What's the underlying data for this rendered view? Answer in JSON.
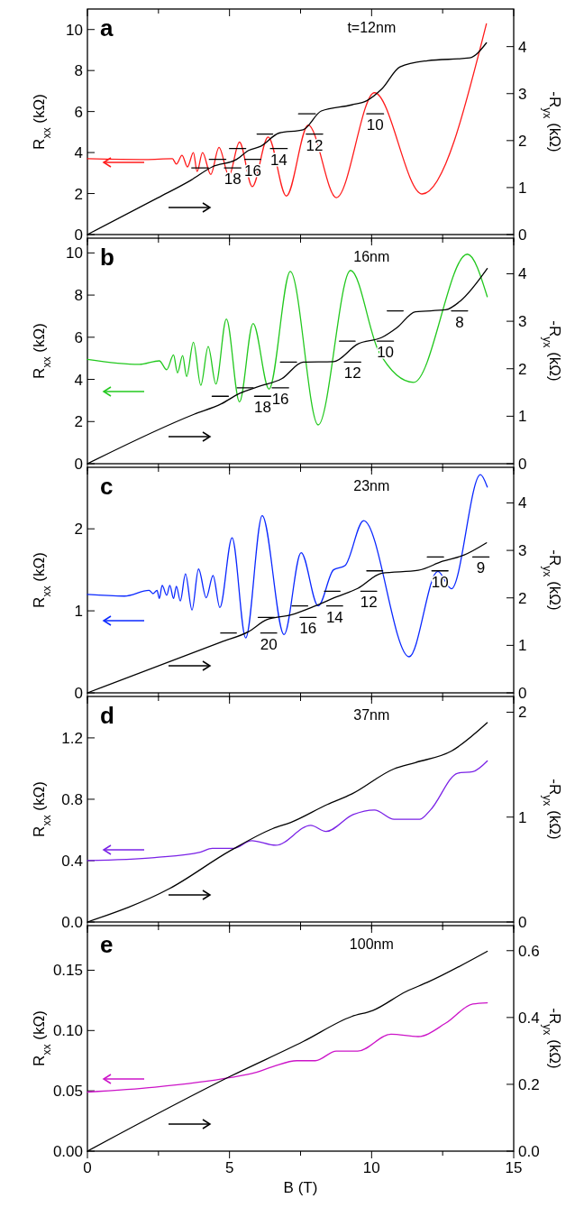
{
  "chart_data": [
    {
      "type": "line",
      "ylabel": "R$_{xx}$ (kΩ)",
      "y2label": "-R$_{yx}$ (kΩ)",
      "tick_labels": "y",
      "xlim": [
        0,
        15
      ],
      "xticks": [
        0,
        {
          "value": 2.5,
          "label": null
        },
        5,
        {
          "value": 7.5,
          "label": null
        },
        10,
        {
          "value": 12.5,
          "label": null
        },
        15
      ],
      "ylim": [
        0,
        11
      ],
      "yticks": [
        0,
        2,
        4,
        6,
        8,
        10
      ],
      "y2lim": [
        0,
        4.8
      ],
      "y2ticks": [
        0,
        1,
        2,
        3,
        4
      ],
      "annotations": [
        "a",
        "t=12nm",
        "18",
        "16",
        "14",
        "12",
        "10"
      ],
      "series": [
        {
          "color": "#ff1a1a",
          "x": [
            0,
            2.05,
            2.99,
            3.13,
            3.33,
            3.52,
            3.73,
            3.86,
            4.05,
            4.34,
            4.63,
            4.98,
            5.35,
            5.8,
            6.36,
            7.0,
            7.77,
            8.76,
            10.1,
            11.78,
            14.04
          ],
          "values": [
            3.7,
            3.66,
            3.7,
            3.44,
            3.87,
            3.3,
            4.0,
            3.08,
            4.0,
            2.93,
            4.25,
            2.87,
            4.51,
            2.34,
            4.76,
            1.88,
            5.34,
            1.8,
            6.92,
            1.98,
            10.28
          ]
        },
        {
          "color": "#000000",
          "axis": "y2",
          "x": [
            0,
            2.47,
            3.65,
            4.39,
            5.25,
            5.67,
            6.1,
            6.74,
            7.59,
            8.23,
            9.3,
            9.83,
            10.36,
            11.0,
            11.96,
            13.45,
            14.04
          ],
          "values": [
            0,
            0.78,
            1.16,
            1.44,
            1.6,
            1.79,
            1.88,
            2.16,
            2.23,
            2.63,
            2.76,
            2.85,
            3.1,
            3.57,
            3.7,
            3.76,
            4.08
          ]
        },
        {
          "color": "#000000",
          "axis": "y2",
          "x": [
            3.67,
            4.26
          ],
          "values": [
            1.42,
            1.42
          ]
        },
        {
          "color": "#000000",
          "axis": "y2",
          "x": [
            4.29,
            4.87
          ],
          "values": [
            1.6,
            1.6
          ]
        },
        {
          "color": "#000000",
          "axis": "y2",
          "x": [
            4.82,
            5.4
          ],
          "values": [
            1.42,
            1.42
          ]
        },
        {
          "color": "#000000",
          "axis": "y2",
          "x": [
            5.0,
            5.57
          ],
          "values": [
            1.83,
            1.83
          ]
        },
        {
          "color": "#000000",
          "axis": "y2",
          "x": [
            5.54,
            6.1
          ],
          "values": [
            1.6,
            1.6
          ]
        },
        {
          "color": "#000000",
          "axis": "y2",
          "x": [
            5.97,
            6.52
          ],
          "values": [
            2.14,
            2.14
          ]
        },
        {
          "color": "#000000",
          "axis": "y2",
          "x": [
            6.44,
            7.03
          ],
          "values": [
            1.83,
            1.83
          ]
        },
        {
          "color": "#000000",
          "axis": "y2",
          "x": [
            7.43,
            8.02
          ],
          "values": [
            2.57,
            2.57
          ]
        },
        {
          "color": "#000000",
          "axis": "y2",
          "x": [
            7.7,
            8.28
          ],
          "values": [
            2.14,
            2.14
          ]
        },
        {
          "color": "#000000",
          "axis": "y2",
          "x": [
            9.83,
            10.42
          ],
          "values": [
            2.57,
            2.57
          ]
        }
      ]
    },
    {
      "type": "line",
      "ylabel": "R$_{xx}$ (kΩ)",
      "y2label": "-R$_{yx}$ (kΩ)",
      "tick_labels": "y",
      "xlim": [
        0,
        15
      ],
      "xticks": [
        0,
        {
          "value": 2.5,
          "label": null
        },
        5,
        {
          "value": 7.5,
          "label": null
        },
        10,
        {
          "value": 12.5,
          "label": null
        },
        15
      ],
      "ylim": [
        0,
        10.7
      ],
      "yticks": [
        0,
        2,
        4,
        6,
        8,
        10
      ],
      "y2lim": [
        0,
        4.75
      ],
      "y2ticks": [
        0,
        1,
        2,
        3,
        4
      ],
      "annotations": [
        "b",
        "16nm",
        "18",
        "16",
        "12",
        "10",
        "8"
      ],
      "series": [
        {
          "color": "#22c81e",
          "x": [
            0,
            1.83,
            2.53,
            2.79,
            3.03,
            3.17,
            3.35,
            3.49,
            3.73,
            3.99,
            4.25,
            4.52,
            4.89,
            5.35,
            5.83,
            6.39,
            7.14,
            8.12,
            9.26,
            10.26,
            11.48,
            13.37,
            14.07
          ],
          "values": [
            4.95,
            4.71,
            4.88,
            4.46,
            5.16,
            4.31,
            5.13,
            4.14,
            5.76,
            3.72,
            5.56,
            3.78,
            6.86,
            2.93,
            6.65,
            3.54,
            9.12,
            1.84,
            9.17,
            5.3,
            3.86,
            9.94,
            7.92
          ]
        },
        {
          "color": "#000000",
          "axis": "y2",
          "x": [
            0,
            3.75,
            4.71,
            5.35,
            6.1,
            6.84,
            7.59,
            8.66,
            9.51,
            10.36,
            10.9,
            11.54,
            12.6,
            13.13,
            14.07
          ],
          "values": [
            0,
            1.04,
            1.26,
            1.48,
            1.64,
            1.79,
            2.14,
            2.15,
            2.52,
            2.66,
            2.87,
            3.2,
            3.24,
            3.43,
            4.11
          ]
        },
        {
          "color": "#000000",
          "axis": "y2",
          "x": [
            4.39,
            4.96
          ],
          "values": [
            1.42,
            1.42
          ]
        },
        {
          "color": "#000000",
          "axis": "y2",
          "x": [
            5.27,
            5.83
          ],
          "values": [
            1.6,
            1.6
          ]
        },
        {
          "color": "#000000",
          "axis": "y2",
          "x": [
            5.88,
            6.45
          ],
          "values": [
            1.42,
            1.42
          ]
        },
        {
          "color": "#000000",
          "axis": "y2",
          "x": [
            6.5,
            7.08
          ],
          "values": [
            1.6,
            1.6
          ]
        },
        {
          "color": "#000000",
          "axis": "y2",
          "x": [
            6.79,
            7.36
          ],
          "values": [
            2.14,
            2.14
          ]
        },
        {
          "color": "#000000",
          "axis": "y2",
          "x": [
            8.87,
            9.42
          ],
          "values": [
            2.58,
            2.58
          ]
        },
        {
          "color": "#000000",
          "axis": "y2",
          "x": [
            9.04,
            9.62
          ],
          "values": [
            2.14,
            2.14
          ]
        },
        {
          "color": "#000000",
          "axis": "y2",
          "x": [
            10.2,
            10.77
          ],
          "values": [
            2.58,
            2.58
          ]
        },
        {
          "color": "#000000",
          "axis": "y2",
          "x": [
            10.55,
            11.11
          ],
          "values": [
            3.22,
            3.22
          ]
        },
        {
          "color": "#000000",
          "axis": "y2",
          "x": [
            12.81,
            13.38
          ],
          "values": [
            3.22,
            3.22
          ]
        }
      ]
    },
    {
      "type": "line",
      "ylabel": "R$_{xx}$ (kΩ)",
      "y2label": "-R$_{yx}$ (kΩ)",
      "tick_labels": "y",
      "xlim": [
        0,
        15
      ],
      "xticks": [
        0,
        {
          "value": 2.5,
          "label": null
        },
        5,
        {
          "value": 7.5,
          "label": null
        },
        10,
        {
          "value": 12.5,
          "label": null
        },
        15
      ],
      "ylim": [
        0,
        2.75
      ],
      "yticks": [
        0,
        1,
        2
      ],
      "y2lim": [
        0,
        4.75
      ],
      "y2ticks": [
        0,
        1,
        2,
        3,
        4
      ],
      "annotations": [
        "c",
        "23nm",
        "20",
        "16",
        "14",
        "12",
        "10",
        "9"
      ],
      "series": [
        {
          "color": "#0a28ff",
          "x": [
            0,
            1.3,
            2.17,
            2.31,
            2.45,
            2.53,
            2.63,
            2.79,
            2.9,
            3.03,
            3.13,
            3.27,
            3.45,
            3.68,
            3.91,
            4.18,
            4.42,
            4.66,
            5.09,
            5.57,
            6.15,
            6.92,
            7.52,
            8.12,
            8.66,
            9.06,
            9.72,
            11.32,
            12.33,
            12.81,
            13.83,
            14.07
          ],
          "values": [
            1.2,
            1.18,
            1.25,
            1.21,
            1.25,
            1.15,
            1.31,
            1.19,
            1.31,
            1.15,
            1.3,
            1.12,
            1.45,
            1.01,
            1.51,
            1.16,
            1.43,
            1.04,
            1.89,
            0.67,
            2.16,
            0.71,
            1.71,
            1.06,
            1.5,
            1.55,
            2.1,
            0.44,
            1.48,
            1.27,
            2.66,
            2.51
          ]
        },
        {
          "color": "#000000",
          "axis": "y2",
          "x": [
            0,
            4.71,
            5.67,
            6.31,
            7.16,
            8.02,
            8.76,
            9.51,
            10.36,
            11.64,
            12.49,
            13.24,
            14.04
          ],
          "values": [
            0,
            1.07,
            1.29,
            1.54,
            1.64,
            1.83,
            2.02,
            2.2,
            2.52,
            2.58,
            2.77,
            2.9,
            3.16
          ]
        },
        {
          "color": "#000000",
          "axis": "y2",
          "x": [
            4.69,
            5.24
          ],
          "values": [
            1.26,
            1.26
          ]
        },
        {
          "color": "#000000",
          "axis": "y2",
          "x": [
            6.1,
            6.66
          ],
          "values": [
            1.26,
            1.26
          ]
        },
        {
          "color": "#000000",
          "axis": "y2",
          "x": [
            6.01,
            6.58
          ],
          "values": [
            1.59,
            1.59
          ]
        },
        {
          "color": "#000000",
          "axis": "y2",
          "x": [
            7.2,
            7.75
          ],
          "values": [
            1.83,
            1.83
          ]
        },
        {
          "color": "#000000",
          "axis": "y2",
          "x": [
            7.48,
            8.05
          ],
          "values": [
            1.59,
            1.59
          ]
        },
        {
          "color": "#000000",
          "axis": "y2",
          "x": [
            8.34,
            8.89
          ],
          "values": [
            2.14,
            2.14
          ]
        },
        {
          "color": "#000000",
          "axis": "y2",
          "x": [
            8.42,
            8.98
          ],
          "values": [
            1.83,
            1.83
          ]
        },
        {
          "color": "#000000",
          "axis": "y2",
          "x": [
            9.83,
            10.39
          ],
          "values": [
            2.57,
            2.57
          ]
        },
        {
          "color": "#000000",
          "axis": "y2",
          "x": [
            9.62,
            10.18
          ],
          "values": [
            2.14,
            2.14
          ]
        },
        {
          "color": "#000000",
          "axis": "y2",
          "x": [
            11.96,
            12.53
          ],
          "values": [
            2.86,
            2.86
          ]
        },
        {
          "color": "#000000",
          "axis": "y2",
          "x": [
            12.12,
            12.69
          ],
          "values": [
            2.57,
            2.57
          ]
        },
        {
          "color": "#000000",
          "axis": "y2",
          "x": [
            13.56,
            14.13
          ],
          "values": [
            2.86,
            2.86
          ]
        }
      ]
    },
    {
      "type": "line",
      "ylabel": "R$_{xx}$ (kΩ)",
      "y2label": "-R$_{yx}$ (kΩ)",
      "tick_labels": "y",
      "xlim": [
        0,
        15
      ],
      "xticks": [
        0,
        {
          "value": 2.5,
          "label": null
        },
        5,
        {
          "value": 7.5,
          "label": null
        },
        10,
        {
          "value": 12.5,
          "label": null
        },
        15
      ],
      "ylim": [
        0,
        1.47
      ],
      "yticks": [
        {
          "value": 0,
          "label": "0.0"
        },
        0.4,
        0.8,
        1.2
      ],
      "y2lim": [
        0,
        2.15
      ],
      "y2ticks": [
        0,
        1,
        2
      ],
      "annotations": [
        "d",
        "37nm"
      ],
      "series": [
        {
          "color": "#7a22e6",
          "x": [
            0,
            2.37,
            3.97,
            4.39,
            5.14,
            5.78,
            6.63,
            7.86,
            8.39,
            9.35,
            10.1,
            10.79,
            11.7,
            12.07,
            13.03,
            13.56,
            14.07
          ],
          "values": [
            0.4,
            0.42,
            0.455,
            0.48,
            0.48,
            0.53,
            0.5,
            0.63,
            0.59,
            0.7,
            0.73,
            0.67,
            0.67,
            0.73,
            0.97,
            0.98,
            1.05
          ]
        },
        {
          "color": "#000000",
          "axis": "y2",
          "x": [
            0,
            2.9,
            5.03,
            6.52,
            7.16,
            8.44,
            9.3,
            10.79,
            11.54,
            12.81,
            14.07
          ],
          "values": [
            0,
            0.32,
            0.68,
            0.89,
            0.95,
            1.12,
            1.22,
            1.46,
            1.52,
            1.63,
            1.9
          ]
        }
      ]
    },
    {
      "type": "line",
      "xlabel": "B (T)",
      "ylabel": "R$_{xx}$ (kΩ)",
      "y2label": "-R$_{yx}$ (kΩ)",
      "xlim": [
        0,
        15
      ],
      "xticks": [
        0,
        {
          "value": 2.5,
          "label": null
        },
        5,
        {
          "value": 7.5,
          "label": null
        },
        10,
        {
          "value": 12.5,
          "label": null
        },
        15
      ],
      "ylim": [
        0,
        0.187
      ],
      "yticks": [
        {
          "value": 0,
          "label": "0.00"
        },
        {
          "value": 0.05,
          "label": "0.05"
        },
        {
          "value": 0.1,
          "label": "0.10"
        },
        {
          "value": 0.15,
          "label": "0.15"
        }
      ],
      "y2lim": [
        0,
        0.675
      ],
      "y2ticks": [
        {
          "value": 0,
          "label": "0.0"
        },
        0.2,
        0.4,
        0.6
      ],
      "annotations": [
        "e",
        "100nm"
      ],
      "series": [
        {
          "color": "#cc14c8",
          "x": [
            0,
            2.37,
            5.03,
            5.88,
            6.52,
            7.37,
            8.02,
            8.76,
            9.51,
            10.68,
            11.64,
            12.6,
            13.56,
            14.07
          ],
          "values": [
            0.049,
            0.053,
            0.061,
            0.065,
            0.07,
            0.075,
            0.075,
            0.083,
            0.083,
            0.097,
            0.095,
            0.106,
            0.122,
            0.123
          ]
        },
        {
          "color": "#000000",
          "axis": "y2",
          "x": [
            0,
            5.03,
            7.59,
            9.3,
            10.04,
            11.22,
            11.96,
            14.07
          ],
          "values": [
            0,
            0.224,
            0.328,
            0.403,
            0.421,
            0.478,
            0.505,
            0.598
          ]
        }
      ]
    }
  ]
}
